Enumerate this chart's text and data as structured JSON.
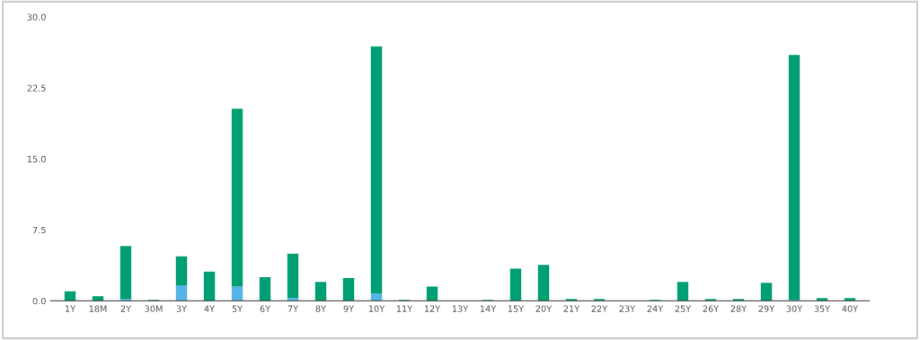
{
  "chart_data": {
    "type": "bar",
    "stacked": true,
    "categories": [
      "1Y",
      "18M",
      "2Y",
      "30M",
      "3Y",
      "4Y",
      "5Y",
      "6Y",
      "7Y",
      "8Y",
      "9Y",
      "10Y",
      "11Y",
      "12Y",
      "13Y",
      "14Y",
      "15Y",
      "20Y",
      "21Y",
      "22Y",
      "23Y",
      "24Y",
      "25Y",
      "26Y",
      "28Y",
      "29Y",
      "30Y",
      "35Y",
      "40Y"
    ],
    "series": [
      {
        "color": "#56b4e9",
        "values": [
          0,
          0,
          0.2,
          0,
          1.6,
          0,
          1.5,
          0,
          0.3,
          0,
          0,
          0.8,
          0,
          0,
          0,
          0,
          0,
          0,
          0,
          0,
          0,
          0,
          0,
          0,
          0,
          0,
          0.1,
          0,
          0
        ]
      },
      {
        "color": "#009e73",
        "values": [
          1.0,
          0.5,
          5.6,
          0.1,
          3.1,
          3.1,
          18.8,
          2.5,
          4.7,
          2.0,
          2.4,
          26.1,
          0.1,
          1.5,
          0,
          0.1,
          3.4,
          3.8,
          0.2,
          0.2,
          0,
          0.1,
          2.0,
          0.2,
          0.2,
          1.9,
          25.9,
          0.3,
          0.3
        ]
      }
    ],
    "ylim": [
      0,
      30
    ],
    "yticks": [
      {
        "value": 0,
        "label": "0.0"
      },
      {
        "value": 7.5,
        "label": "7.5"
      },
      {
        "value": 15,
        "label": "15.0"
      },
      {
        "value": 22.5,
        "label": "22.5"
      },
      {
        "value": 30,
        "label": "30.0"
      }
    ],
    "grid": false
  }
}
